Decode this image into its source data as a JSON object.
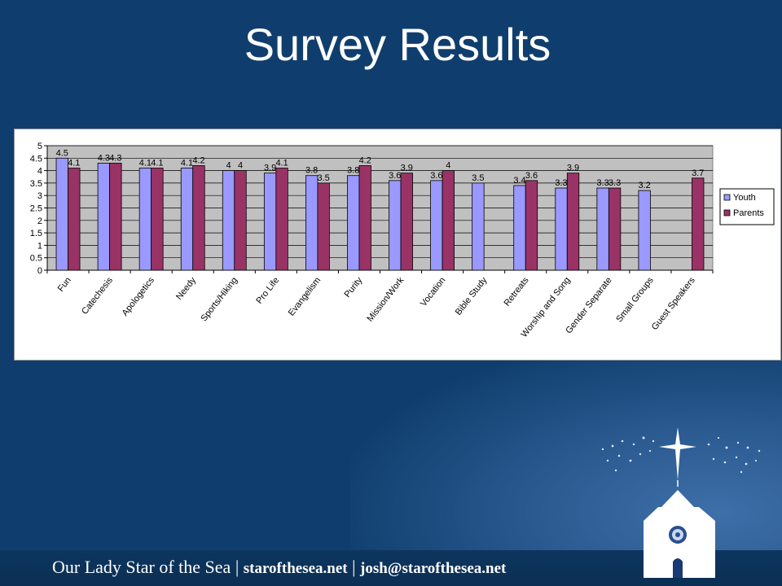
{
  "slide": {
    "title": "Survey Results",
    "footer": {
      "parish": "Our Lady Star of the Sea",
      "separator": "|",
      "website": "starofthesea.net",
      "email": "josh@starofthesea.net"
    }
  },
  "colors": {
    "background": "#0f3e6e",
    "youth": "#9999ff",
    "parents": "#993366",
    "plot_area": "#c0c0c0"
  },
  "chart_data": {
    "type": "bar",
    "title": "",
    "xlabel": "",
    "ylabel": "",
    "ylim": [
      0,
      5
    ],
    "yticks": [
      "0",
      "0.5",
      "1",
      "1.5",
      "2",
      "2.5",
      "3",
      "3.5",
      "4",
      "4.5",
      "5"
    ],
    "grid": true,
    "legend_position": "right",
    "categories": [
      "Fun",
      "Catechesis",
      "Apologetics",
      "Needy",
      "Sports/Hiking",
      "Pro Life",
      "Evangelism",
      "Purity",
      "Mission/Work",
      "Vocation",
      "Bible Study",
      "Retreats",
      "Worship and Song",
      "Gender Separate",
      "Small Groups",
      "Guest Speakers"
    ],
    "series": [
      {
        "name": "Youth",
        "color": "#9999ff",
        "values": [
          4.5,
          4.3,
          4.1,
          4.1,
          4,
          3.9,
          3.8,
          3.8,
          3.6,
          3.6,
          3.5,
          3.4,
          3.3,
          3.3,
          3.2,
          null
        ]
      },
      {
        "name": "Parents",
        "color": "#993366",
        "values": [
          4.1,
          4.3,
          4.1,
          4.2,
          4,
          4.1,
          3.5,
          4.2,
          3.9,
          4,
          null,
          3.6,
          3.9,
          3.3,
          null,
          3.7
        ]
      }
    ]
  }
}
